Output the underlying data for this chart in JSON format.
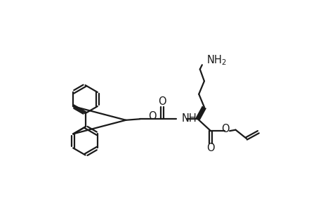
{
  "bg": "#ffffff",
  "lc": "#1a1a1a",
  "lw": 1.6,
  "R": 26,
  "figw": 4.7,
  "figh": 3.1,
  "dpi": 100,
  "xlim": [
    0,
    470
  ],
  "ylim": [
    0,
    310
  ]
}
